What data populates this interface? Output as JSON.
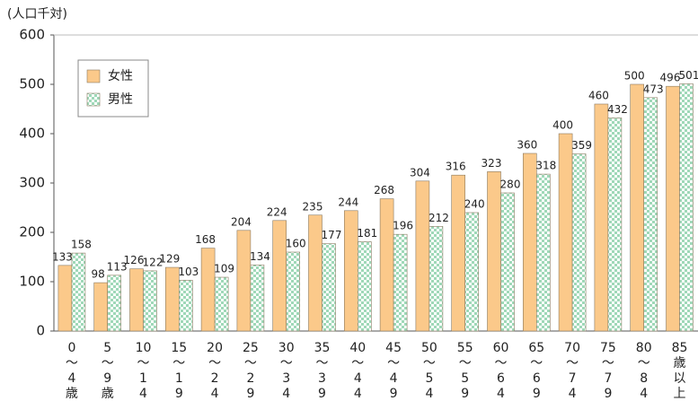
{
  "chart_data": {
    "type": "bar",
    "y_label": "(人口千対)",
    "categories": [
      "0〜4歳",
      "5〜9歳",
      "10〜14歳",
      "15〜19歳",
      "20〜24歳",
      "25〜29歳",
      "30〜34歳",
      "35〜39歳",
      "40〜44歳",
      "45〜49歳",
      "50〜54歳",
      "55〜59歳",
      "60〜64歳",
      "65〜69歳",
      "70〜74歳",
      "75〜79歳",
      "80〜84歳",
      "85歳以上"
    ],
    "series": [
      {
        "name": "女性",
        "color": "#fbc98a",
        "values": [
          133,
          98,
          126,
          129,
          168,
          204,
          224,
          235,
          244,
          268,
          304,
          316,
          323,
          360,
          400,
          460,
          500,
          496
        ]
      },
      {
        "name": "男性",
        "color": "#9fd8b8",
        "pattern": "checker",
        "values": [
          158,
          113,
          122,
          103,
          109,
          134,
          160,
          177,
          181,
          196,
          212,
          240,
          280,
          318,
          359,
          432,
          473,
          501
        ]
      }
    ],
    "ylim": [
      0,
      600
    ],
    "yticks": [
      0,
      100,
      200,
      300,
      400,
      500,
      600
    ],
    "grid": false,
    "legend": "upper-left"
  }
}
